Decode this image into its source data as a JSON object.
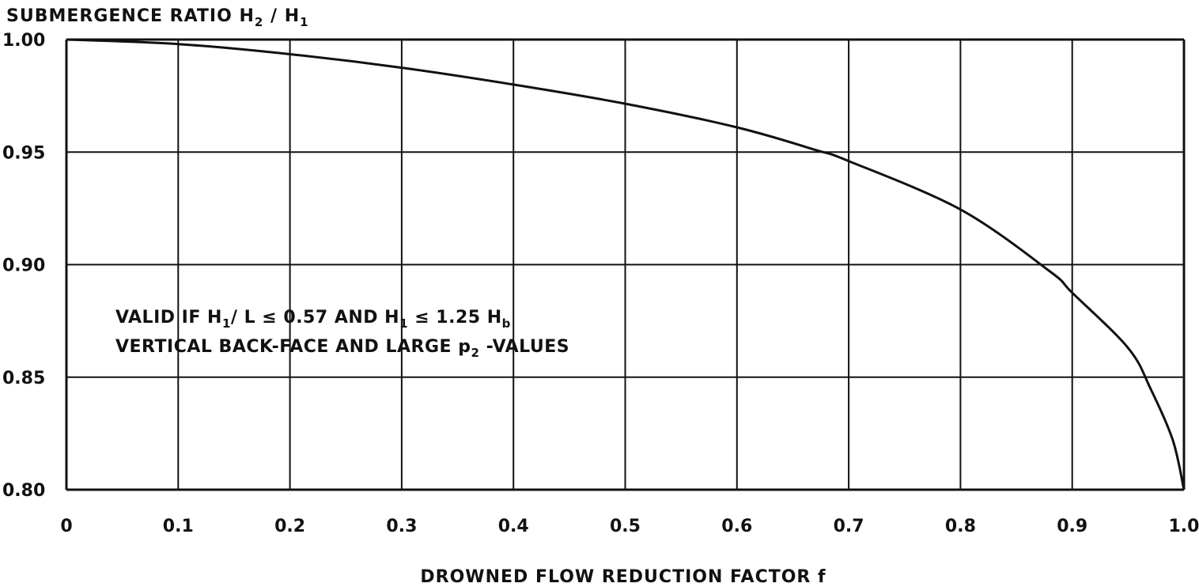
{
  "chart_data": {
    "type": "line",
    "ylabel": {
      "main": "SUBMERGENCE RATIO H",
      "sub_a": "2",
      "sep": " / H",
      "sub_b": "1"
    },
    "xlabel": "DROWNED FLOW REDUCTION FACTOR f",
    "xlim": [
      0,
      1.0
    ],
    "ylim": [
      0.8,
      1.0
    ],
    "x_ticks": [
      "0",
      "0.1",
      "0.2",
      "0.3",
      "0.4",
      "0.5",
      "0.6",
      "0.7",
      "0.8",
      "0.9",
      "1.0"
    ],
    "y_ticks": [
      "0.80",
      "0.85",
      "0.90",
      "0.95",
      "1.00"
    ],
    "grid": true,
    "annotation": {
      "line1": {
        "a": "VALID IF H",
        "b": "1",
        "c": "/ L  ≤ 0.57  AND   H",
        "d": "1",
        "e": " ≤ 1.25 H",
        "f": "b"
      },
      "line2": {
        "a": "VERTICAL BACK-FACE AND LARGE p",
        "b": "2",
        "c": " -VALUES"
      }
    },
    "series": [
      {
        "x": [
          0.0,
          0.1,
          0.2,
          0.3,
          0.4,
          0.5,
          0.6,
          0.67,
          0.7,
          0.8,
          0.88,
          0.9,
          0.95,
          0.97,
          0.99,
          1.0
        ],
        "y": [
          1.0,
          0.998,
          0.9935,
          0.9875,
          0.98,
          0.9715,
          0.961,
          0.951,
          0.946,
          0.9245,
          0.897,
          0.8875,
          0.863,
          0.845,
          0.822,
          0.8
        ]
      }
    ]
  }
}
